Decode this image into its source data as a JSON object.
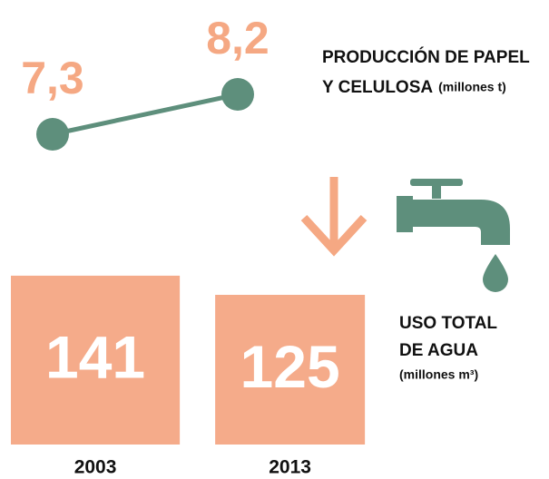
{
  "chart_data": [
    {
      "type": "line",
      "title_lines": [
        "PRODUCCIÓN DE PAPEL",
        "Y CELULOSA"
      ],
      "unit": "(millones t)",
      "values": [
        7.3,
        8.2
      ],
      "value_labels": [
        "7,3",
        "8,2"
      ],
      "color": "#5e8f7c",
      "label_color": "#f5a883"
    },
    {
      "type": "bar",
      "title_lines": [
        "USO TOTAL",
        "DE AGUA"
      ],
      "unit": "(millones m³)",
      "categories": [
        "2003",
        "2013"
      ],
      "values": [
        141,
        125
      ],
      "color": "#f5ab8a"
    }
  ]
}
